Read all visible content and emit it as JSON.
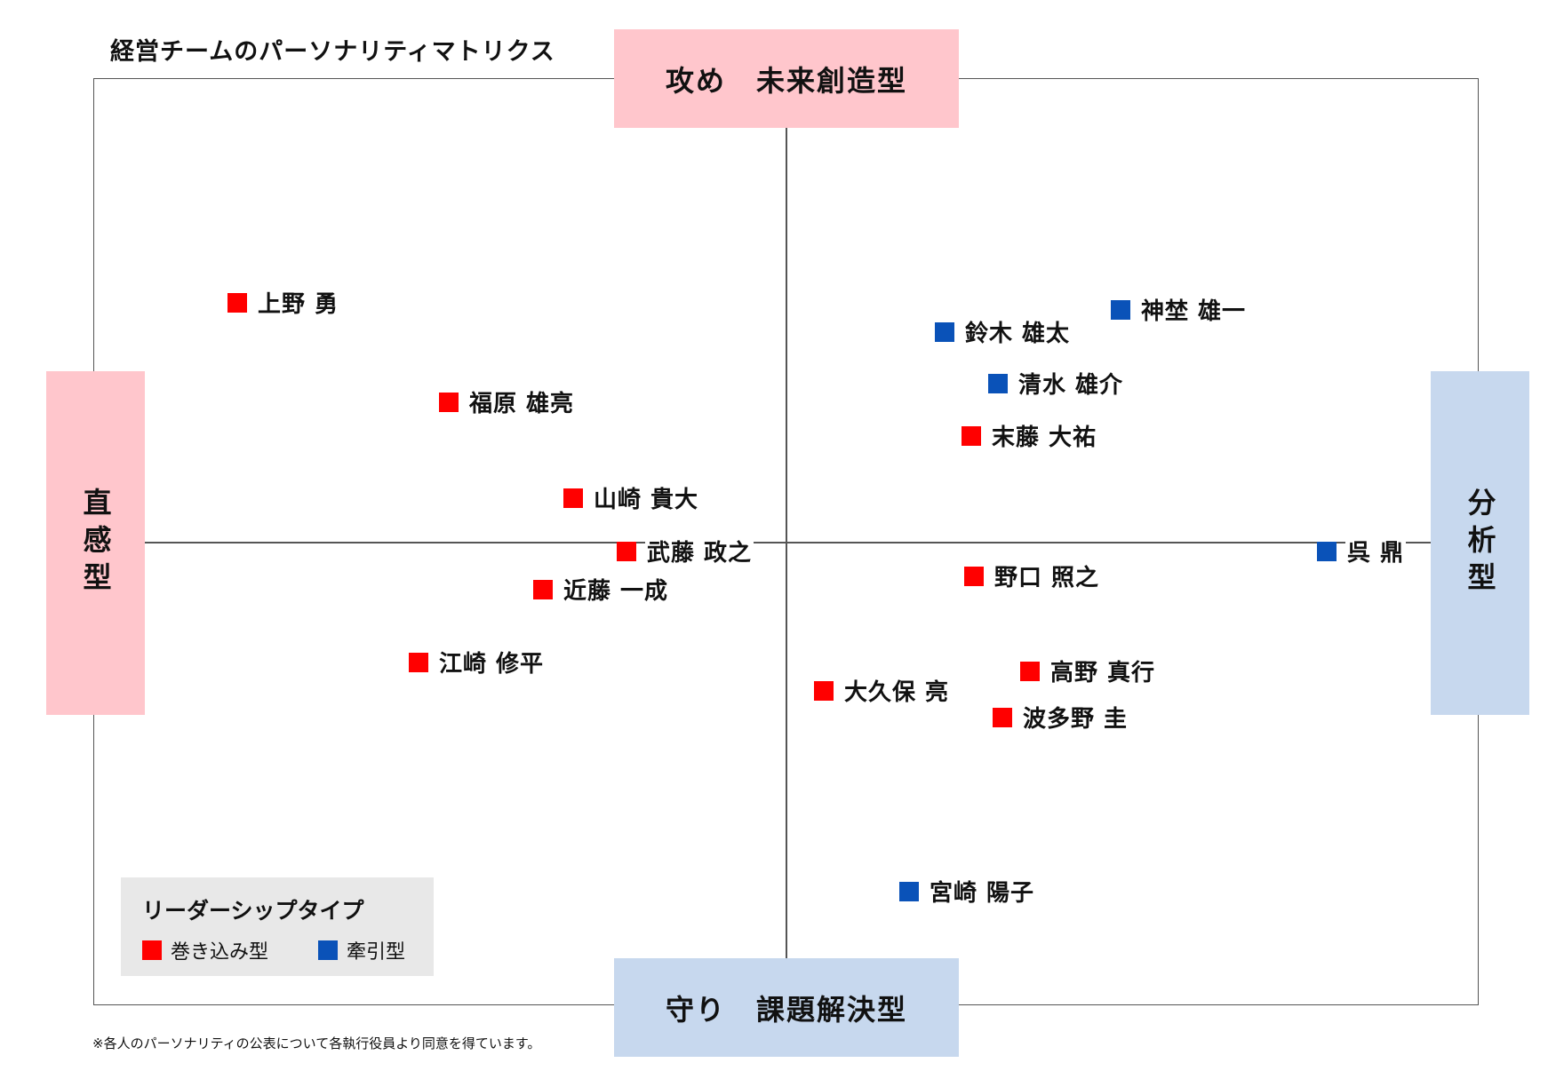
{
  "title": "経営チームのパーソナリティマトリクス",
  "axes": {
    "top": "攻め　未来創造型",
    "bottom": "守り　課題解決型",
    "left": "直感型",
    "right": "分析型"
  },
  "colors": {
    "engaging": "#ff0000",
    "leading": "#0a52b8",
    "pink_box": "#ffc6cc",
    "blue_box": "#c7d8ee"
  },
  "legend": {
    "title": "リーダーシップタイプ",
    "items": [
      {
        "label": "巻き込み型",
        "type": "engaging"
      },
      {
        "label": "牽引型",
        "type": "leading"
      }
    ]
  },
  "members": [
    {
      "name": "上野 勇",
      "type": "engaging"
    },
    {
      "name": "福原 雄亮",
      "type": "engaging"
    },
    {
      "name": "山崎 貴大",
      "type": "engaging"
    },
    {
      "name": "武藤 政之",
      "type": "engaging"
    },
    {
      "name": "近藤 一成",
      "type": "engaging"
    },
    {
      "name": "江崎 修平",
      "type": "engaging"
    },
    {
      "name": "鈴木 雄太",
      "type": "leading"
    },
    {
      "name": "神埜 雄一",
      "type": "leading"
    },
    {
      "name": "清水 雄介",
      "type": "leading"
    },
    {
      "name": "末藤 大祐",
      "type": "engaging"
    },
    {
      "name": "呉 鼎",
      "type": "leading"
    },
    {
      "name": "野口 照之",
      "type": "engaging"
    },
    {
      "name": "高野 真行",
      "type": "engaging"
    },
    {
      "name": "大久保 亮",
      "type": "engaging"
    },
    {
      "name": "波多野 圭",
      "type": "engaging"
    },
    {
      "name": "宮崎 陽子",
      "type": "leading"
    }
  ],
  "footnote": "※各人のパーソナリティの公表について各執行役員より同意を得ています。"
}
